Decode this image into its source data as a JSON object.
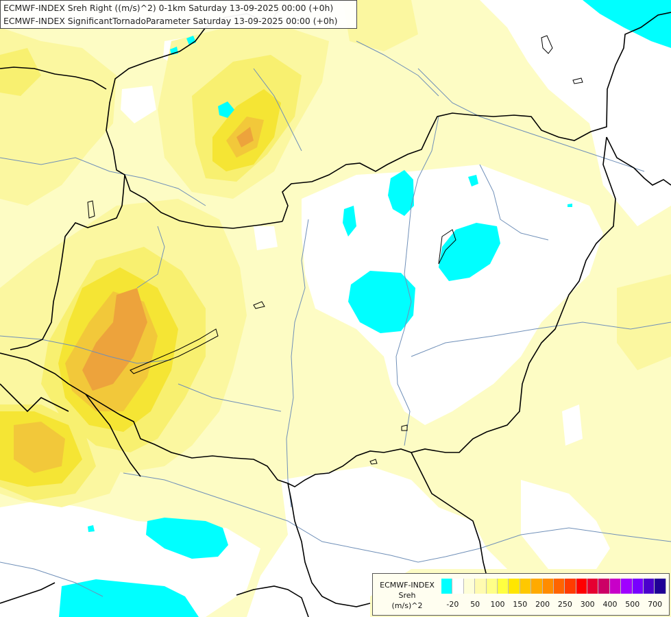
{
  "title": {
    "line1": "ECMWF-INDEX Sreh Right ((m/s)^2) 0-1km Saturday 13-09-2025 00:00 (+0h)",
    "line2": "ECMWF-INDEX SignificantTornadoParameter Saturday 13-09-2025 00:00 (+0h)"
  },
  "legend": {
    "source": "ECMWF-INDEX",
    "variable": "Sreh",
    "unit": "(m/s)^2",
    "colors": [
      "#00ffff",
      "#ffffff",
      "#fefed8",
      "#fffbb0",
      "#ffff88",
      "#ffff40",
      "#ffe600",
      "#ffc800",
      "#ffaa00",
      "#ff8c00",
      "#ff6400",
      "#ff3c00",
      "#ff0000",
      "#e60032",
      "#cc0066",
      "#c800c8",
      "#a000ff",
      "#7800ff",
      "#4b00cc",
      "#200096"
    ],
    "ticks": [
      {
        "label": "-20",
        "index": 1
      },
      {
        "label": "50",
        "index": 3
      },
      {
        "label": "100",
        "index": 5
      },
      {
        "label": "150",
        "index": 7
      },
      {
        "label": "200",
        "index": 9
      },
      {
        "label": "250",
        "index": 11
      },
      {
        "label": "300",
        "index": 13
      },
      {
        "label": "400",
        "index": 15
      },
      {
        "label": "500",
        "index": 17
      },
      {
        "label": "700",
        "index": 19
      }
    ]
  },
  "map": {
    "field_colors": {
      "pale": "#fdfcc4",
      "light": "#fbf7a0",
      "yellow": "#f8f070",
      "bright": "#f5e534",
      "gold": "#f2c83a",
      "orange": "#eda33c",
      "cyan": "#00ffff",
      "border": "#000000",
      "river": "#6f8fb8"
    }
  }
}
